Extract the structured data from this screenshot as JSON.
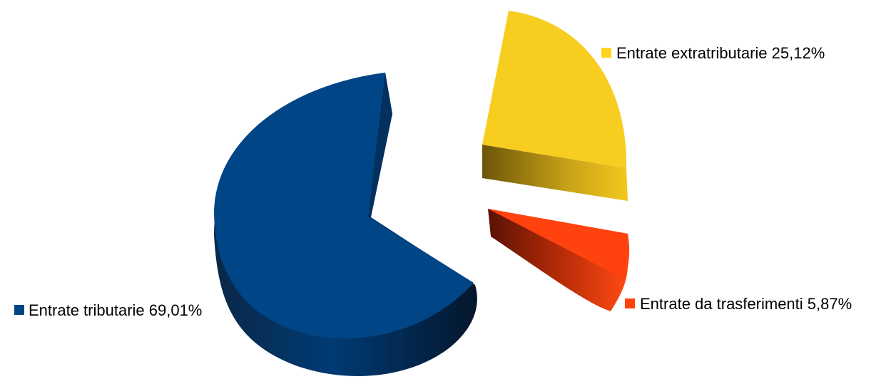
{
  "chart_data": {
    "type": "pie",
    "style": "3d-exploded",
    "slices": [
      {
        "label": "Entrate tributarie 69,01%",
        "value": 69.01,
        "color": "#004586",
        "legend_color": "#004586"
      },
      {
        "label": "Entrate extratributarie 25,12%",
        "value": 25.12,
        "color": "#f7cd20",
        "legend_color": "#ffd320"
      },
      {
        "label": "Entrate da trasferimenti 5,87%",
        "value": 5.87,
        "color": "#ff420e",
        "legend_color": "#ff420e"
      }
    ],
    "legend": "labels-beside-slices"
  }
}
